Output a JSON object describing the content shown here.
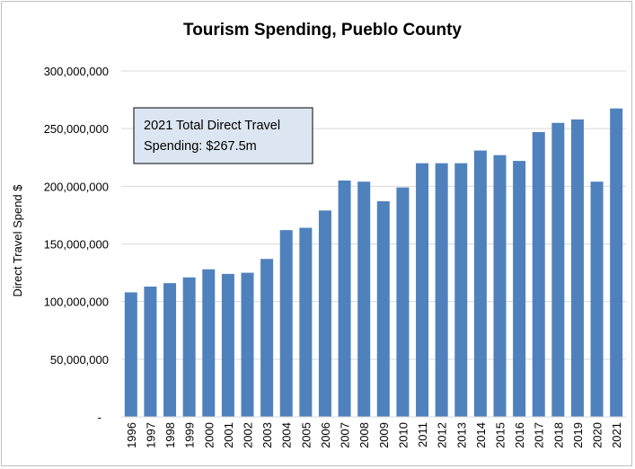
{
  "chart_data": {
    "type": "bar",
    "title": "Tourism Spending, Pueblo County",
    "xlabel": "",
    "ylabel": "Direct Travel Spend $",
    "ylim": [
      0,
      300000000
    ],
    "yticks": [
      0,
      50000000,
      100000000,
      150000000,
      200000000,
      250000000,
      300000000
    ],
    "ytick_labels": [
      "-",
      "50,000,000",
      "100,000,000",
      "150,000,000",
      "200,000,000",
      "250,000,000",
      "300,000,000"
    ],
    "grid": true,
    "legend": "none",
    "bar_color": "#4f81bd",
    "categories": [
      "1996",
      "1997",
      "1998",
      "1999",
      "2000",
      "2001",
      "2002",
      "2003",
      "2004",
      "2005",
      "2006",
      "2007",
      "2008",
      "2009",
      "2010",
      "2011",
      "2012",
      "2013",
      "2014",
      "2015",
      "2016",
      "2017",
      "2018",
      "2019",
      "2020",
      "2021"
    ],
    "values": [
      108000000,
      113000000,
      116000000,
      121000000,
      128000000,
      124000000,
      125000000,
      137000000,
      162000000,
      164000000,
      179000000,
      205000000,
      204000000,
      187000000,
      199000000,
      220000000,
      220000000,
      220000000,
      231000000,
      227000000,
      222000000,
      247000000,
      255000000,
      258000000,
      204000000,
      267500000
    ],
    "annotation": {
      "lines": [
        "2021 Total Direct Travel",
        "Spending:  $267.5m"
      ]
    }
  }
}
